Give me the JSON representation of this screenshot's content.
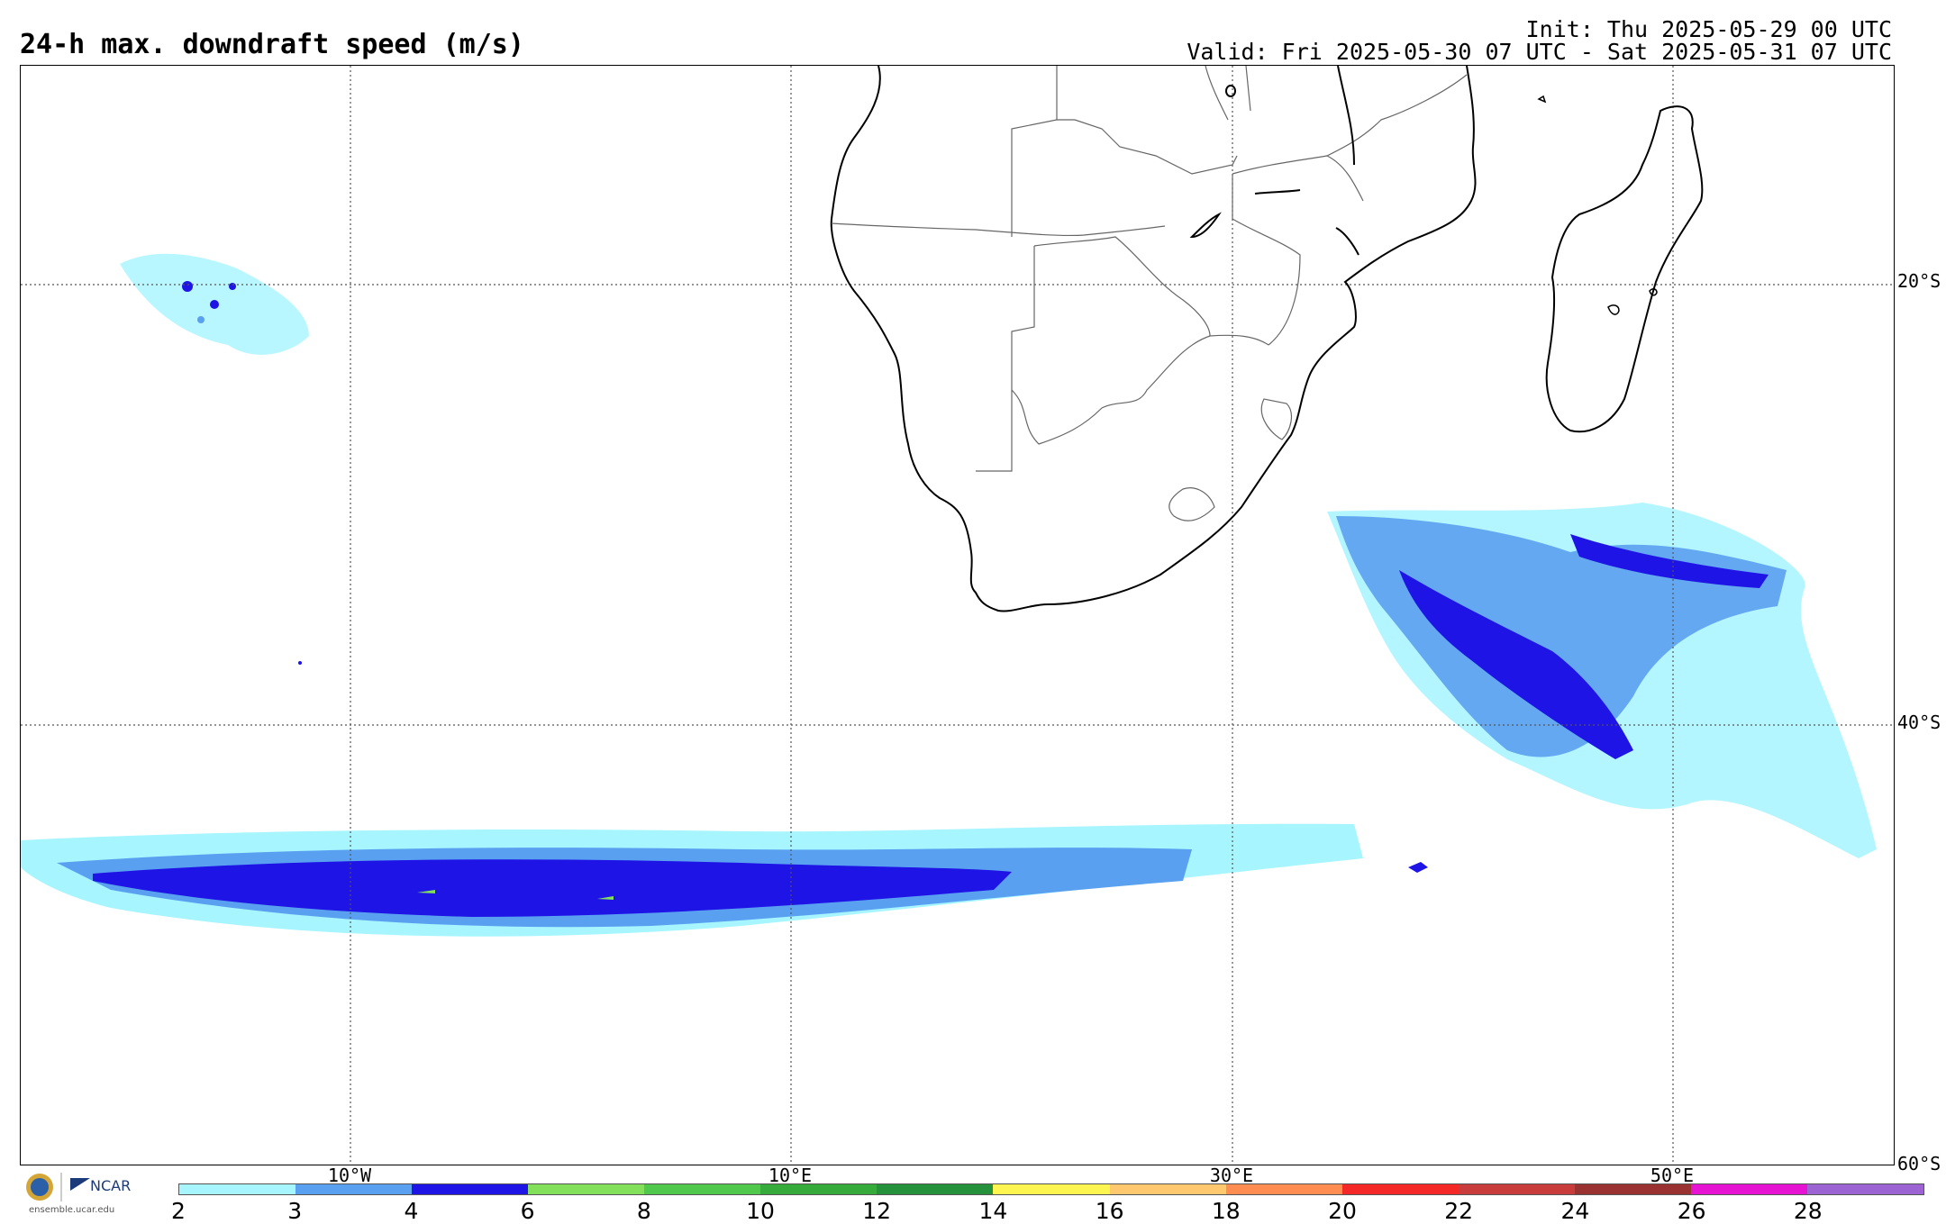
{
  "header": {
    "title": "24-h max. downdraft speed (m/s)",
    "init": "Init: Thu 2025-05-29 00 UTC",
    "valid": "Valid: Fri 2025-05-30 07 UTC - Sat 2025-05-31 07 UTC"
  },
  "map": {
    "lat_labels": [
      "20°S",
      "40°S",
      "60°S"
    ],
    "lon_labels": [
      "10°W",
      "10°E",
      "30°E",
      "50°E"
    ]
  },
  "colorbar": {
    "ticks": [
      "2",
      "3",
      "4",
      "6",
      "8",
      "10",
      "12",
      "14",
      "16",
      "18",
      "20",
      "22",
      "24",
      "26",
      "28"
    ],
    "colors": [
      "#a6f5ff",
      "#5aa0f0",
      "#1e14e6",
      "#82e05a",
      "#50c84b",
      "#37aa3c",
      "#25913a",
      "#fff550",
      "#ffc86e",
      "#ff8c50",
      "#f52828",
      "#c83c3c",
      "#9b3232",
      "#e614d2",
      "#9b64d2"
    ]
  },
  "branding": {
    "org": "NCAR",
    "site": "ensemble.ucar.edu"
  }
}
